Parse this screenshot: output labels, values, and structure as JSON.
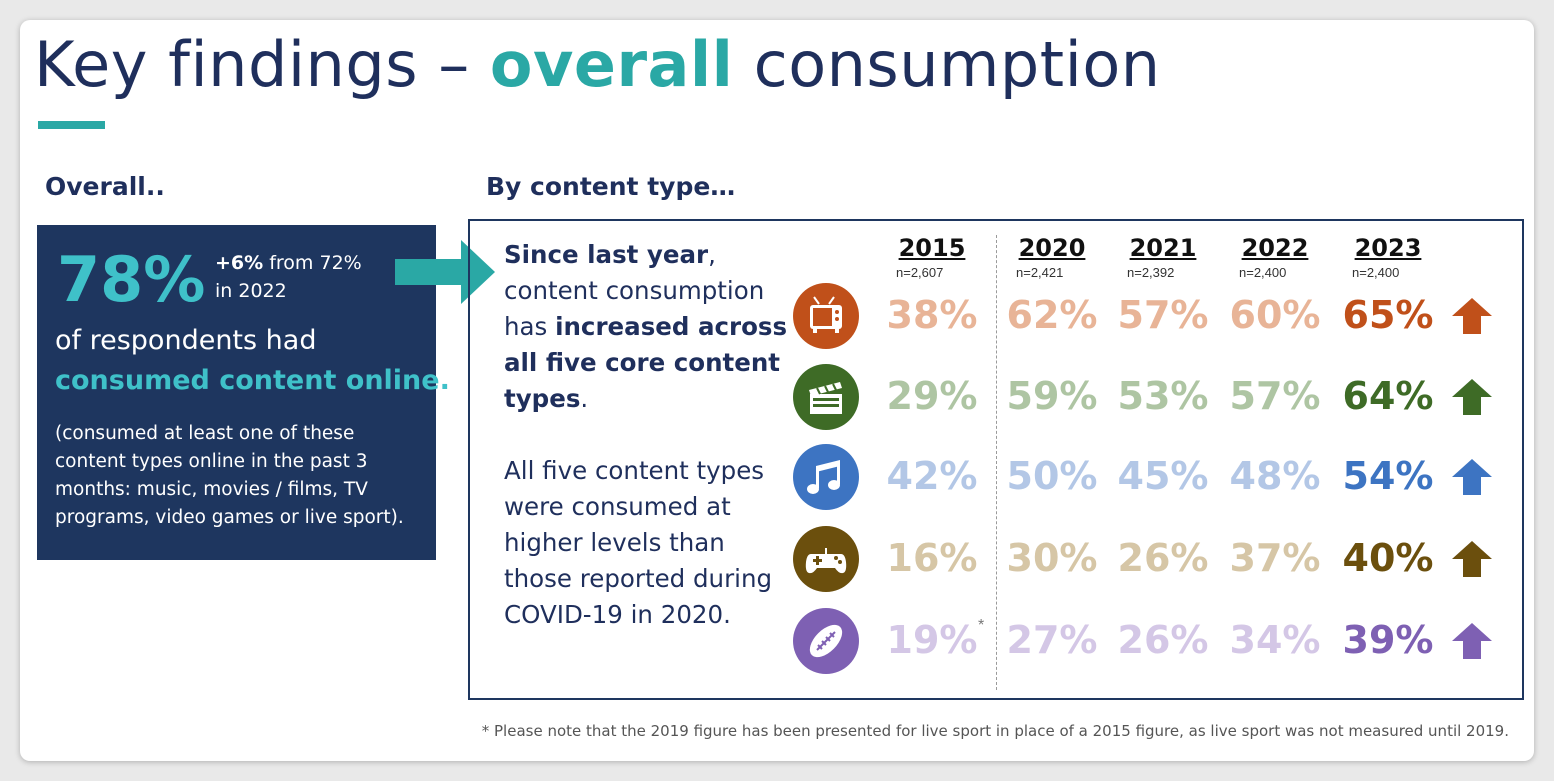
{
  "title": {
    "part1": "Key findings – ",
    "accent": "overall",
    "part2": " consumption"
  },
  "left": {
    "heading": "Overall..",
    "big_pct": "78%",
    "change_bold": "+6%",
    "change_rest": " from 72%",
    "change_line2": "in 2022",
    "resp_line1": "of respondents had",
    "resp_line2": "consumed content online.",
    "note": "(consumed at least one of these content types online in the past 3 months: music, movies / films, TV programs, video games or live sport)."
  },
  "right": {
    "heading": "By content type…",
    "text1_bold_a": "Since last year",
    "text1_a": ", content consumption has ",
    "text1_bold_b": "increased across all five core content types",
    "text1_b": ".",
    "text2": "All five content types were consumed at higher levels than those reported during COVID-19 in 2020."
  },
  "years": [
    {
      "year": "2015",
      "n": "n=2,607"
    },
    {
      "year": "2020",
      "n": "n=2,421"
    },
    {
      "year": "2021",
      "n": "n=2,392"
    },
    {
      "year": "2022",
      "n": "n=2,400"
    },
    {
      "year": "2023",
      "n": "n=2,400"
    }
  ],
  "rows": [
    {
      "icon": "tv-icon",
      "color": "#c0501a",
      "light": "#e8b497",
      "values": [
        "38%",
        "62%",
        "57%",
        "60%",
        "65%"
      ]
    },
    {
      "icon": "clapperboard-icon",
      "color": "#3e6b26",
      "light": "#aec5a3",
      "values": [
        "29%",
        "59%",
        "53%",
        "57%",
        "64%"
      ]
    },
    {
      "icon": "music-notes-icon",
      "color": "#3d74c2",
      "light": "#b3c7e6",
      "values": [
        "42%",
        "50%",
        "45%",
        "48%",
        "54%"
      ]
    },
    {
      "icon": "game-controller-icon",
      "color": "#6b4f0d",
      "light": "#d6c6a6",
      "values": [
        "16%",
        "30%",
        "26%",
        "37%",
        "40%"
      ]
    },
    {
      "icon": "football-icon",
      "color": "#7e60b3",
      "light": "#d4c7e6",
      "values": [
        "19%",
        "27%",
        "26%",
        "34%",
        "39%"
      ]
    }
  ],
  "asterisk": "*",
  "footnote": "* Please note that the 2019 figure has been presented for live sport in place of a 2015 figure, as live sport was not measured until 2019."
}
